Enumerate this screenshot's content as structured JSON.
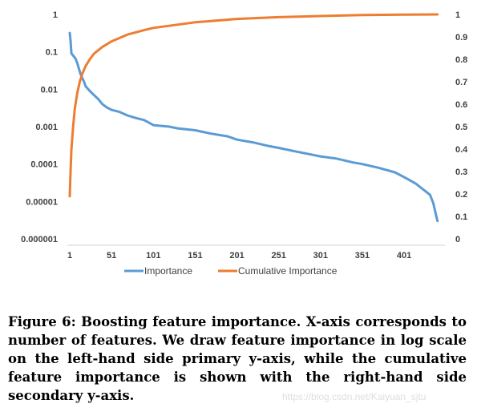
{
  "chart_data": {
    "type": "line",
    "x_ticks": [
      "1",
      "51",
      "101",
      "151",
      "201",
      "251",
      "301",
      "351",
      "401"
    ],
    "x_range": [
      1,
      447
    ],
    "y_left": {
      "scale": "log",
      "ticks": [
        "1",
        "0.1",
        "0.01",
        "0.001",
        "0.0001",
        "0.00001",
        "0.000001"
      ],
      "range": [
        1e-06,
        1
      ]
    },
    "y_right": {
      "scale": "linear",
      "ticks": [
        "1",
        "0.9",
        "0.8",
        "0.7",
        "0.6",
        "0.5",
        "0.4",
        "0.3",
        "0.2",
        "0.1",
        "0"
      ],
      "range": [
        0,
        1
      ]
    },
    "grid": false,
    "legend_position": "bottom",
    "series": [
      {
        "name": "Importance",
        "axis": "left",
        "color": "#5b9bd5",
        "points": [
          [
            1,
            0.32
          ],
          [
            2,
            0.2
          ],
          [
            3,
            0.09
          ],
          [
            5,
            0.08
          ],
          [
            8,
            0.065
          ],
          [
            10,
            0.05
          ],
          [
            12,
            0.035
          ],
          [
            14,
            0.025
          ],
          [
            16,
            0.02
          ],
          [
            18,
            0.016
          ],
          [
            20,
            0.012
          ],
          [
            25,
            0.009
          ],
          [
            30,
            0.007
          ],
          [
            35,
            0.0055
          ],
          [
            40,
            0.004
          ],
          [
            45,
            0.0033
          ],
          [
            51,
            0.0028
          ],
          [
            60,
            0.0025
          ],
          [
            70,
            0.002
          ],
          [
            80,
            0.0017
          ],
          [
            90,
            0.0015
          ],
          [
            101,
            0.0011
          ],
          [
            120,
            0.001
          ],
          [
            130,
            0.0009
          ],
          [
            151,
            0.0008
          ],
          [
            170,
            0.00065
          ],
          [
            190,
            0.00055
          ],
          [
            201,
            0.00045
          ],
          [
            220,
            0.00038
          ],
          [
            240,
            0.0003
          ],
          [
            251,
            0.00027
          ],
          [
            270,
            0.00022
          ],
          [
            290,
            0.00018
          ],
          [
            301,
            0.00016
          ],
          [
            320,
            0.00014
          ],
          [
            340,
            0.00011
          ],
          [
            351,
            0.0001
          ],
          [
            370,
            8e-05
          ],
          [
            390,
            6e-05
          ],
          [
            401,
            4.5e-05
          ],
          [
            415,
            3e-05
          ],
          [
            425,
            2e-05
          ],
          [
            432,
            1.5e-05
          ],
          [
            436,
            9e-06
          ],
          [
            439,
            4.5e-06
          ],
          [
            441,
            3e-06
          ]
        ]
      },
      {
        "name": "Cumulative Importance",
        "axis": "right",
        "color": "#ed7d31",
        "points": [
          [
            1,
            0.19
          ],
          [
            2,
            0.3
          ],
          [
            3,
            0.4
          ],
          [
            5,
            0.5
          ],
          [
            7,
            0.58
          ],
          [
            10,
            0.65
          ],
          [
            13,
            0.7
          ],
          [
            16,
            0.735
          ],
          [
            20,
            0.77
          ],
          [
            25,
            0.8
          ],
          [
            30,
            0.825
          ],
          [
            40,
            0.855
          ],
          [
            51,
            0.88
          ],
          [
            70,
            0.91
          ],
          [
            90,
            0.93
          ],
          [
            101,
            0.94
          ],
          [
            151,
            0.965
          ],
          [
            201,
            0.98
          ],
          [
            251,
            0.988
          ],
          [
            301,
            0.993
          ],
          [
            351,
            0.997
          ],
          [
            401,
            0.999
          ],
          [
            441,
            1.0
          ]
        ]
      }
    ]
  },
  "caption": {
    "text": "Figure 6: Boosting feature importance. X-axis corresponds to number of features. We draw feature importance in log scale on the left-hand side primary y-axis, while the cumulative feature importance is shown with the right-hand side secondary y-axis."
  },
  "watermark": {
    "text": "https://blog.csdn.net/Kaiyuan_sjtu"
  }
}
